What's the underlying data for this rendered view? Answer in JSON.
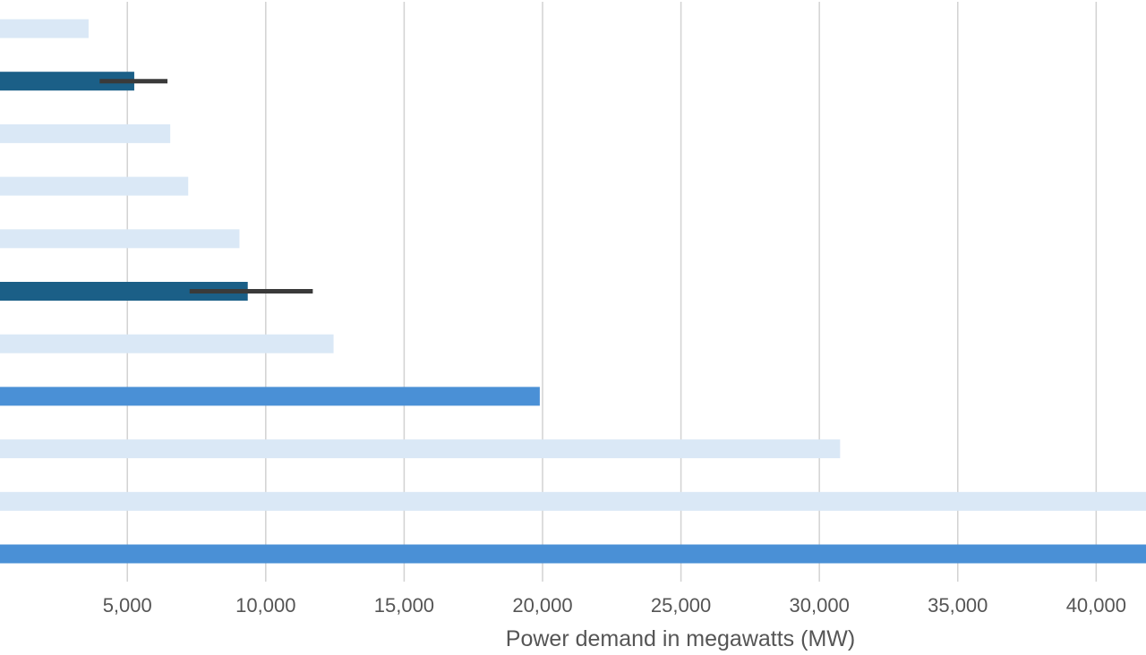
{
  "chart_data": {
    "type": "bar",
    "orientation": "horizontal",
    "title": "",
    "xlabel": "Power demand in megawatts (MW)",
    "ylabel": "",
    "xlim": [
      400,
      41800
    ],
    "grid": true,
    "x_ticks": [
      {
        "value": 5000,
        "label": "5,000"
      },
      {
        "value": 10000,
        "label": "10,000"
      },
      {
        "value": 15000,
        "label": "15,000"
      },
      {
        "value": 20000,
        "label": "20,000"
      },
      {
        "value": 25000,
        "label": "25,000"
      },
      {
        "value": 30000,
        "label": "30,000"
      },
      {
        "value": 35000,
        "label": "35,000"
      },
      {
        "value": 40000,
        "label": "40,000"
      }
    ],
    "bars": [
      {
        "value": 3600,
        "style": "light"
      },
      {
        "value": 5250,
        "style": "dark",
        "error_low": 4000,
        "error_high": 6450
      },
      {
        "value": 6550,
        "style": "light"
      },
      {
        "value": 7200,
        "style": "light"
      },
      {
        "value": 9050,
        "style": "light"
      },
      {
        "value": 9350,
        "style": "dark",
        "error_low": 7250,
        "error_high": 11700
      },
      {
        "value": 12450,
        "style": "light"
      },
      {
        "value": 19900,
        "style": "medium"
      },
      {
        "value": 30750,
        "style": "light"
      },
      {
        "value": 41800,
        "style": "light"
      },
      {
        "value": 41800,
        "style": "medium"
      }
    ],
    "colors": {
      "light": "#dae8f6",
      "dark": "#1b5f87",
      "medium": "#4a90d6",
      "error": "#3a3a3a",
      "grid": "#d2d2d2",
      "text": "#555555"
    }
  }
}
